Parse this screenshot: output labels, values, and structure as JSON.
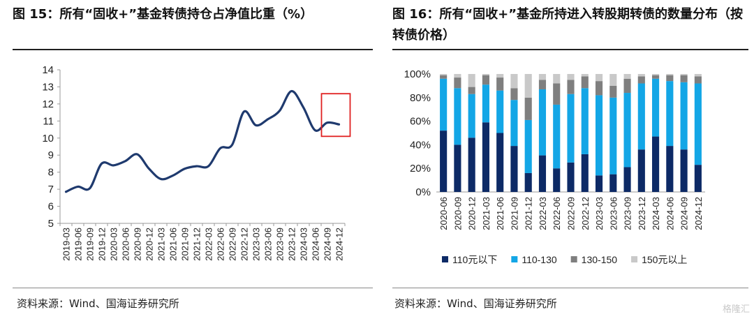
{
  "left": {
    "title": "图 15：所有“固收+”基金转债持仓占净值比重（%）",
    "source": "资料来源：Wind、国海证券研究所"
  },
  "right": {
    "title": "图 16：所有“固收+”基金所持进入转股期转债的数量分布（按转债价格）",
    "source": "资料来源：Wind、国海证券研究所"
  },
  "watermark": "格隆汇",
  "chart_data": [
    {
      "type": "line",
      "title": "",
      "x": [
        "2019-03",
        "2019-06",
        "2019-09",
        "2019-12",
        "2020-03",
        "2020-06",
        "2020-09",
        "2020-12",
        "2021-03",
        "2021-06",
        "2021-09",
        "2021-12",
        "2022-03",
        "2022-06",
        "2022-09",
        "2022-12",
        "2023-03",
        "2023-06",
        "2023-09",
        "2023-12",
        "2024-03",
        "2024-06",
        "2024-09",
        "2024-12"
      ],
      "series": [
        {
          "values": [
            6.85,
            7.15,
            7.05,
            8.5,
            8.4,
            8.65,
            9.05,
            8.2,
            7.6,
            7.8,
            8.2,
            8.35,
            8.35,
            9.4,
            9.6,
            11.55,
            10.75,
            11.1,
            11.6,
            12.75,
            11.8,
            10.45,
            10.9,
            10.8
          ],
          "color": "#1f3a6e"
        }
      ],
      "ylim": [
        5,
        14
      ],
      "yticks": [
        5,
        6,
        7,
        8,
        9,
        10,
        11,
        12,
        13,
        14
      ],
      "highlight_box": {
        "x_from": "2024-09",
        "x_to": "2024-12",
        "y_from": 10.1,
        "y_to": 12.6,
        "color": "#e02020"
      }
    },
    {
      "type": "bar",
      "stacked": true,
      "categories": [
        "2020-06",
        "2020-09",
        "2020-12",
        "2021-03",
        "2021-06",
        "2021-09",
        "2021-12",
        "2022-03",
        "2022-06",
        "2022-09",
        "2022-12",
        "2023-03",
        "2023-06",
        "2023-09",
        "2023-12",
        "2024-03",
        "2024-06",
        "2024-09",
        "2024-12"
      ],
      "series": [
        {
          "name": "110元以下",
          "color": "#0d2a66",
          "values": [
            52,
            40,
            46,
            59,
            50,
            39,
            16,
            31,
            20,
            25,
            32,
            14,
            15,
            21,
            36,
            47,
            39,
            36,
            23
          ]
        },
        {
          "name": "110-130",
          "color": "#13a6e6",
          "values": [
            44,
            48,
            37,
            32,
            36,
            39,
            45,
            56,
            54,
            58,
            56,
            68,
            65,
            63,
            56,
            49,
            55,
            57,
            69
          ]
        },
        {
          "name": "130-150",
          "color": "#7f7f7f",
          "values": [
            3,
            9,
            6,
            8,
            11,
            10,
            19,
            8,
            18,
            12,
            10,
            12,
            10,
            12,
            6,
            3,
            5,
            6,
            6
          ]
        },
        {
          "name": "150元以上",
          "color": "#c9c9c9",
          "values": [
            1,
            3,
            11,
            1,
            3,
            12,
            20,
            5,
            8,
            5,
            2,
            6,
            10,
            4,
            2,
            1,
            1,
            1,
            2
          ]
        }
      ],
      "ylim": [
        0,
        100
      ],
      "ytick_labels": [
        "0%",
        "20%",
        "40%",
        "60%",
        "80%",
        "100%"
      ],
      "legend": "bottom"
    }
  ]
}
